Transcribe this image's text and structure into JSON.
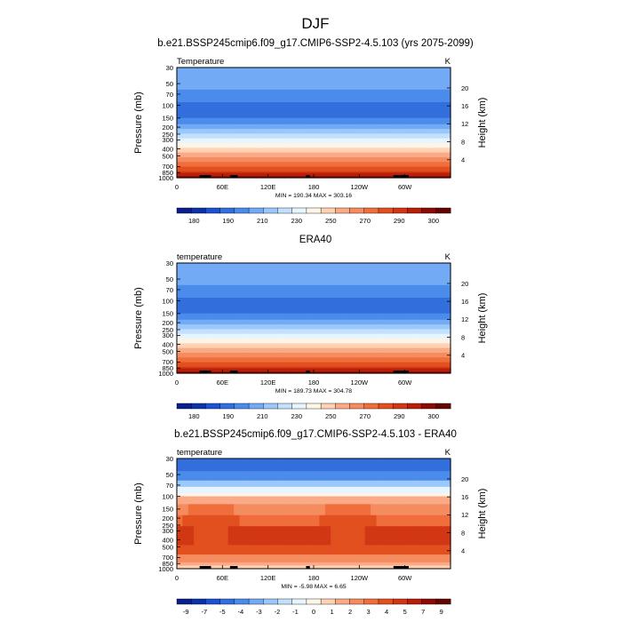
{
  "title": "DJF",
  "colors": {
    "abs": [
      "#0a1e8c",
      "#0a32aa",
      "#1e50d2",
      "#326edc",
      "#4b8ceb",
      "#73aaf5",
      "#9bc8fa",
      "#c3e1ff",
      "#e6f5ff",
      "#fff5e6",
      "#ffd2b4",
      "#faaa87",
      "#f58c5f",
      "#ef6e3c",
      "#e1501e",
      "#d23714",
      "#b91e0a",
      "#8c0a05",
      "#640500"
    ],
    "diff": [
      "#0a1e8c",
      "#0a32aa",
      "#1e50d2",
      "#326edc",
      "#4b8ceb",
      "#73aaf5",
      "#9bc8fa",
      "#c3e1ff",
      "#e6f5ff",
      "#fff5e6",
      "#ffd2b4",
      "#faaa87",
      "#f58c5f",
      "#ef6e3c",
      "#e1501e",
      "#d23714",
      "#b91e0a",
      "#8c0a05",
      "#640500"
    ]
  },
  "chart_data": [
    {
      "type": "heatmap",
      "title": "b.e21.BSSP245cmip6.f09_g17.CMIP6-SSP2-4.5.103 (yrs 2075-2099)",
      "left_label": "Temperature",
      "units": "K",
      "ylabel": "Pressure (mb)",
      "ylabel_right": "Height (km)",
      "x_ticks": [
        "0",
        "60E",
        "120E",
        "180",
        "120W",
        "60W"
      ],
      "x_range": [
        0,
        360
      ],
      "p_ticks": [
        "30",
        "50",
        "70",
        "100",
        "150",
        "200",
        "250",
        "300",
        "400",
        "500",
        "700",
        "850",
        "1000"
      ],
      "p_range": [
        30,
        1000
      ],
      "h_ticks": [
        "4",
        "8",
        "12",
        "16",
        "20"
      ],
      "stats": "MIN = 190.34  MAX = 303.16",
      "colorbar_labels": [
        "180",
        "190",
        "210",
        "230",
        "250",
        "270",
        "290",
        "300"
      ],
      "fill_kind": "abs"
    },
    {
      "type": "heatmap",
      "title": "ERA40",
      "left_label": "temperature",
      "units": "K",
      "ylabel": "Pressure (mb)",
      "ylabel_right": "Height (km)",
      "x_ticks": [
        "0",
        "60E",
        "120E",
        "180",
        "120W",
        "60W"
      ],
      "x_range": [
        0,
        360
      ],
      "p_ticks": [
        "30",
        "50",
        "70",
        "100",
        "150",
        "200",
        "250",
        "300",
        "400",
        "500",
        "700",
        "850",
        "1000"
      ],
      "p_range": [
        30,
        1000
      ],
      "h_ticks": [
        "4",
        "8",
        "12",
        "16",
        "20"
      ],
      "stats": "MIN = 189.73  MAX = 304.78",
      "colorbar_labels": [
        "180",
        "190",
        "210",
        "230",
        "250",
        "270",
        "290",
        "300"
      ],
      "fill_kind": "abs"
    },
    {
      "type": "heatmap",
      "title": "b.e21.BSSP245cmip6.f09_g17.CMIP6-SSP2-4.5.103 - ERA40",
      "left_label": "temperature",
      "units": "K",
      "ylabel": "Pressure (mb)",
      "ylabel_right": "Height (km)",
      "x_ticks": [
        "0",
        "60E",
        "120E",
        "180",
        "120W",
        "60W"
      ],
      "x_range": [
        0,
        360
      ],
      "p_ticks": [
        "30",
        "50",
        "70",
        "100",
        "150",
        "200",
        "250",
        "300",
        "400",
        "500",
        "700",
        "850",
        "1000"
      ],
      "p_range": [
        30,
        1000
      ],
      "h_ticks": [
        "4",
        "8",
        "12",
        "16",
        "20"
      ],
      "stats": "MIN = -5.98  MAX =  6.65",
      "colorbar_labels": [
        "-9",
        "-7",
        "-5",
        "-4",
        "-3",
        "-2",
        "-1",
        "0",
        "1",
        "2",
        "3",
        "4",
        "5",
        "7",
        "9"
      ],
      "fill_kind": "diff"
    }
  ]
}
